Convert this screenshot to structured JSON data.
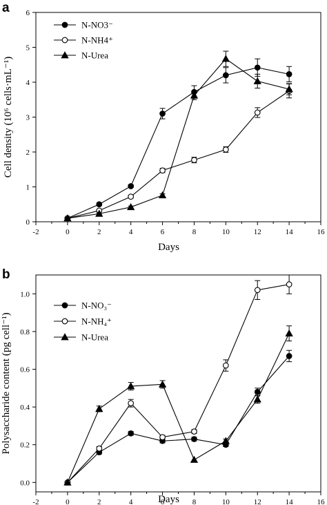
{
  "chart_data": [
    {
      "panel": "a",
      "type": "line",
      "title": "",
      "xlabel": "Days",
      "ylabel": "Cell density (10⁶ cells·mL⁻¹)",
      "xlim": [
        -2,
        16
      ],
      "ylim": [
        0,
        6
      ],
      "xticks": [
        -2,
        0,
        2,
        4,
        6,
        8,
        10,
        12,
        14,
        16
      ],
      "yticks": [
        0,
        1,
        2,
        3,
        4,
        5,
        6
      ],
      "x": [
        0,
        2,
        4,
        6,
        8,
        10,
        12,
        14
      ],
      "legend_position": "top-left",
      "series": [
        {
          "name": "N-NO3⁻",
          "marker": "circle-filled",
          "values": [
            0.1,
            0.5,
            1.02,
            3.1,
            3.72,
            4.2,
            4.42,
            4.23
          ],
          "errors": [
            0.02,
            0.04,
            0.04,
            0.15,
            0.18,
            0.22,
            0.25,
            0.22
          ]
        },
        {
          "name": "N-NH4⁺",
          "marker": "circle-open",
          "values": [
            0.1,
            0.32,
            0.72,
            1.47,
            1.77,
            2.07,
            3.13,
            3.75
          ],
          "errors": [
            0.02,
            0.03,
            0.04,
            0.06,
            0.08,
            0.08,
            0.14,
            0.2
          ]
        },
        {
          "name": "N-Urea",
          "marker": "triangle-filled",
          "values": [
            0.1,
            0.23,
            0.42,
            0.76,
            3.62,
            4.67,
            4.03,
            3.8
          ],
          "errors": [
            0.02,
            0.02,
            0.03,
            0.04,
            0.12,
            0.22,
            0.2,
            0.16
          ]
        }
      ]
    },
    {
      "panel": "b",
      "type": "line",
      "title": "",
      "xlabel": "Days",
      "ylabel": "Polysaccharide content (pg cell⁻¹)",
      "xlim": [
        -2,
        16
      ],
      "ylim": [
        -0.05,
        1.1
      ],
      "xticks": [
        -2,
        0,
        2,
        4,
        6,
        8,
        10,
        12,
        14,
        16
      ],
      "yticks": [
        0.0,
        0.2,
        0.4,
        0.6,
        0.8,
        1.0
      ],
      "x": [
        0,
        2,
        4,
        6,
        8,
        10,
        12,
        14
      ],
      "legend_position": "top-left",
      "series": [
        {
          "name": "N-NO₃⁻",
          "marker": "circle-filled",
          "values": [
            0.0,
            0.16,
            0.26,
            0.22,
            0.23,
            0.2,
            0.48,
            0.67
          ],
          "errors": [
            0.0,
            0.01,
            0.01,
            0.01,
            0.01,
            0.01,
            0.02,
            0.03
          ]
        },
        {
          "name": "N-NH₄⁺",
          "marker": "circle-open",
          "values": [
            0.0,
            0.18,
            0.42,
            0.24,
            0.27,
            0.62,
            1.02,
            1.05
          ],
          "errors": [
            0.0,
            0.01,
            0.02,
            0.01,
            0.01,
            0.03,
            0.05,
            0.05
          ]
        },
        {
          "name": "N-Urea",
          "marker": "triangle-filled",
          "values": [
            0.0,
            0.39,
            0.51,
            0.52,
            0.12,
            0.22,
            0.44,
            0.79
          ],
          "errors": [
            0.0,
            0.015,
            0.02,
            0.02,
            0.0,
            0.01,
            0.02,
            0.04
          ]
        }
      ]
    }
  ],
  "legends": {
    "a": [
      "N-NO3⁻",
      "N-NH4⁺",
      "N-Urea"
    ],
    "b": [
      "N-NO₃⁻",
      "N-NH₄⁺",
      "N-Urea"
    ]
  }
}
